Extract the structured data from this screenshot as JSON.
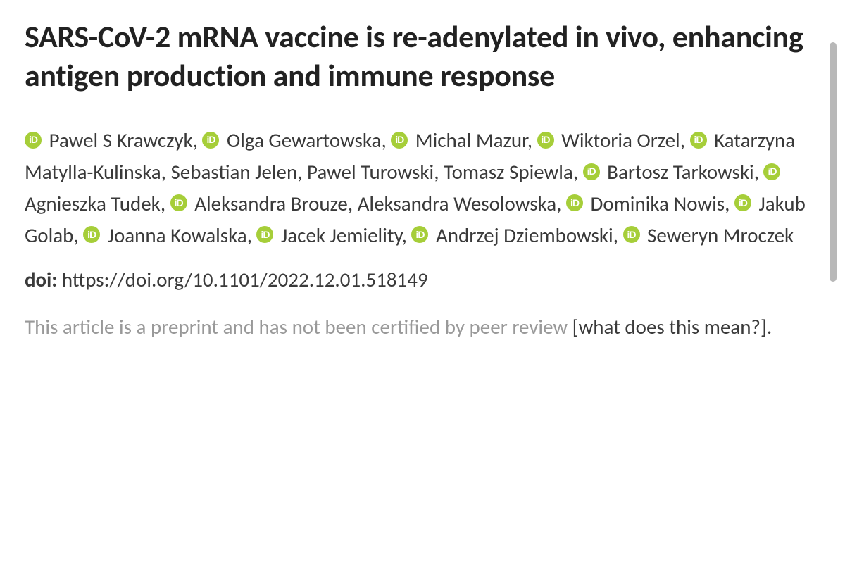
{
  "title": "SARS-CoV-2 mRNA vaccine is re-adenylated in vivo, enhancing antigen production and immune response",
  "authors": [
    {
      "name": "Pawel S Krawczyk",
      "orcid": true
    },
    {
      "name": "Olga Gewartowska",
      "orcid": true
    },
    {
      "name": "Michal Mazur",
      "orcid": true
    },
    {
      "name": "Wiktoria Orzel",
      "orcid": true
    },
    {
      "name": "Katarzyna Matylla-Kulinska",
      "orcid": true
    },
    {
      "name": "Sebastian Jelen",
      "orcid": false
    },
    {
      "name": "Pawel Turowski",
      "orcid": false
    },
    {
      "name": "Tomasz Spiewla",
      "orcid": false
    },
    {
      "name": "Bartosz Tarkowski",
      "orcid": true
    },
    {
      "name": "Agnieszka Tudek",
      "orcid": true
    },
    {
      "name": "Aleksandra Brouze",
      "orcid": true
    },
    {
      "name": "Aleksandra Wesolowska",
      "orcid": false
    },
    {
      "name": "Dominika Nowis",
      "orcid": true
    },
    {
      "name": "Jakub Golab",
      "orcid": true
    },
    {
      "name": "Joanna Kowalska",
      "orcid": true
    },
    {
      "name": "Jacek Jemielity",
      "orcid": true
    },
    {
      "name": "Andrzej Dziembowski",
      "orcid": true
    },
    {
      "name": "Seweryn Mroczek",
      "orcid": true
    }
  ],
  "doi": {
    "label": "doi:",
    "url": "https://doi.org/10.1101/2022.12.01.518149"
  },
  "preprint_notice": {
    "text": "This article is a preprint and has not been certified by peer review ",
    "link_text": "what does this mean?",
    "bracket_open": "[",
    "bracket_close": "]."
  },
  "colors": {
    "orcid_green": "#a6ce39",
    "text_primary": "#222222",
    "text_secondary": "#3a3a3a",
    "text_muted": "#999999",
    "background": "#ffffff",
    "scrollbar": "#b8b8b8"
  }
}
